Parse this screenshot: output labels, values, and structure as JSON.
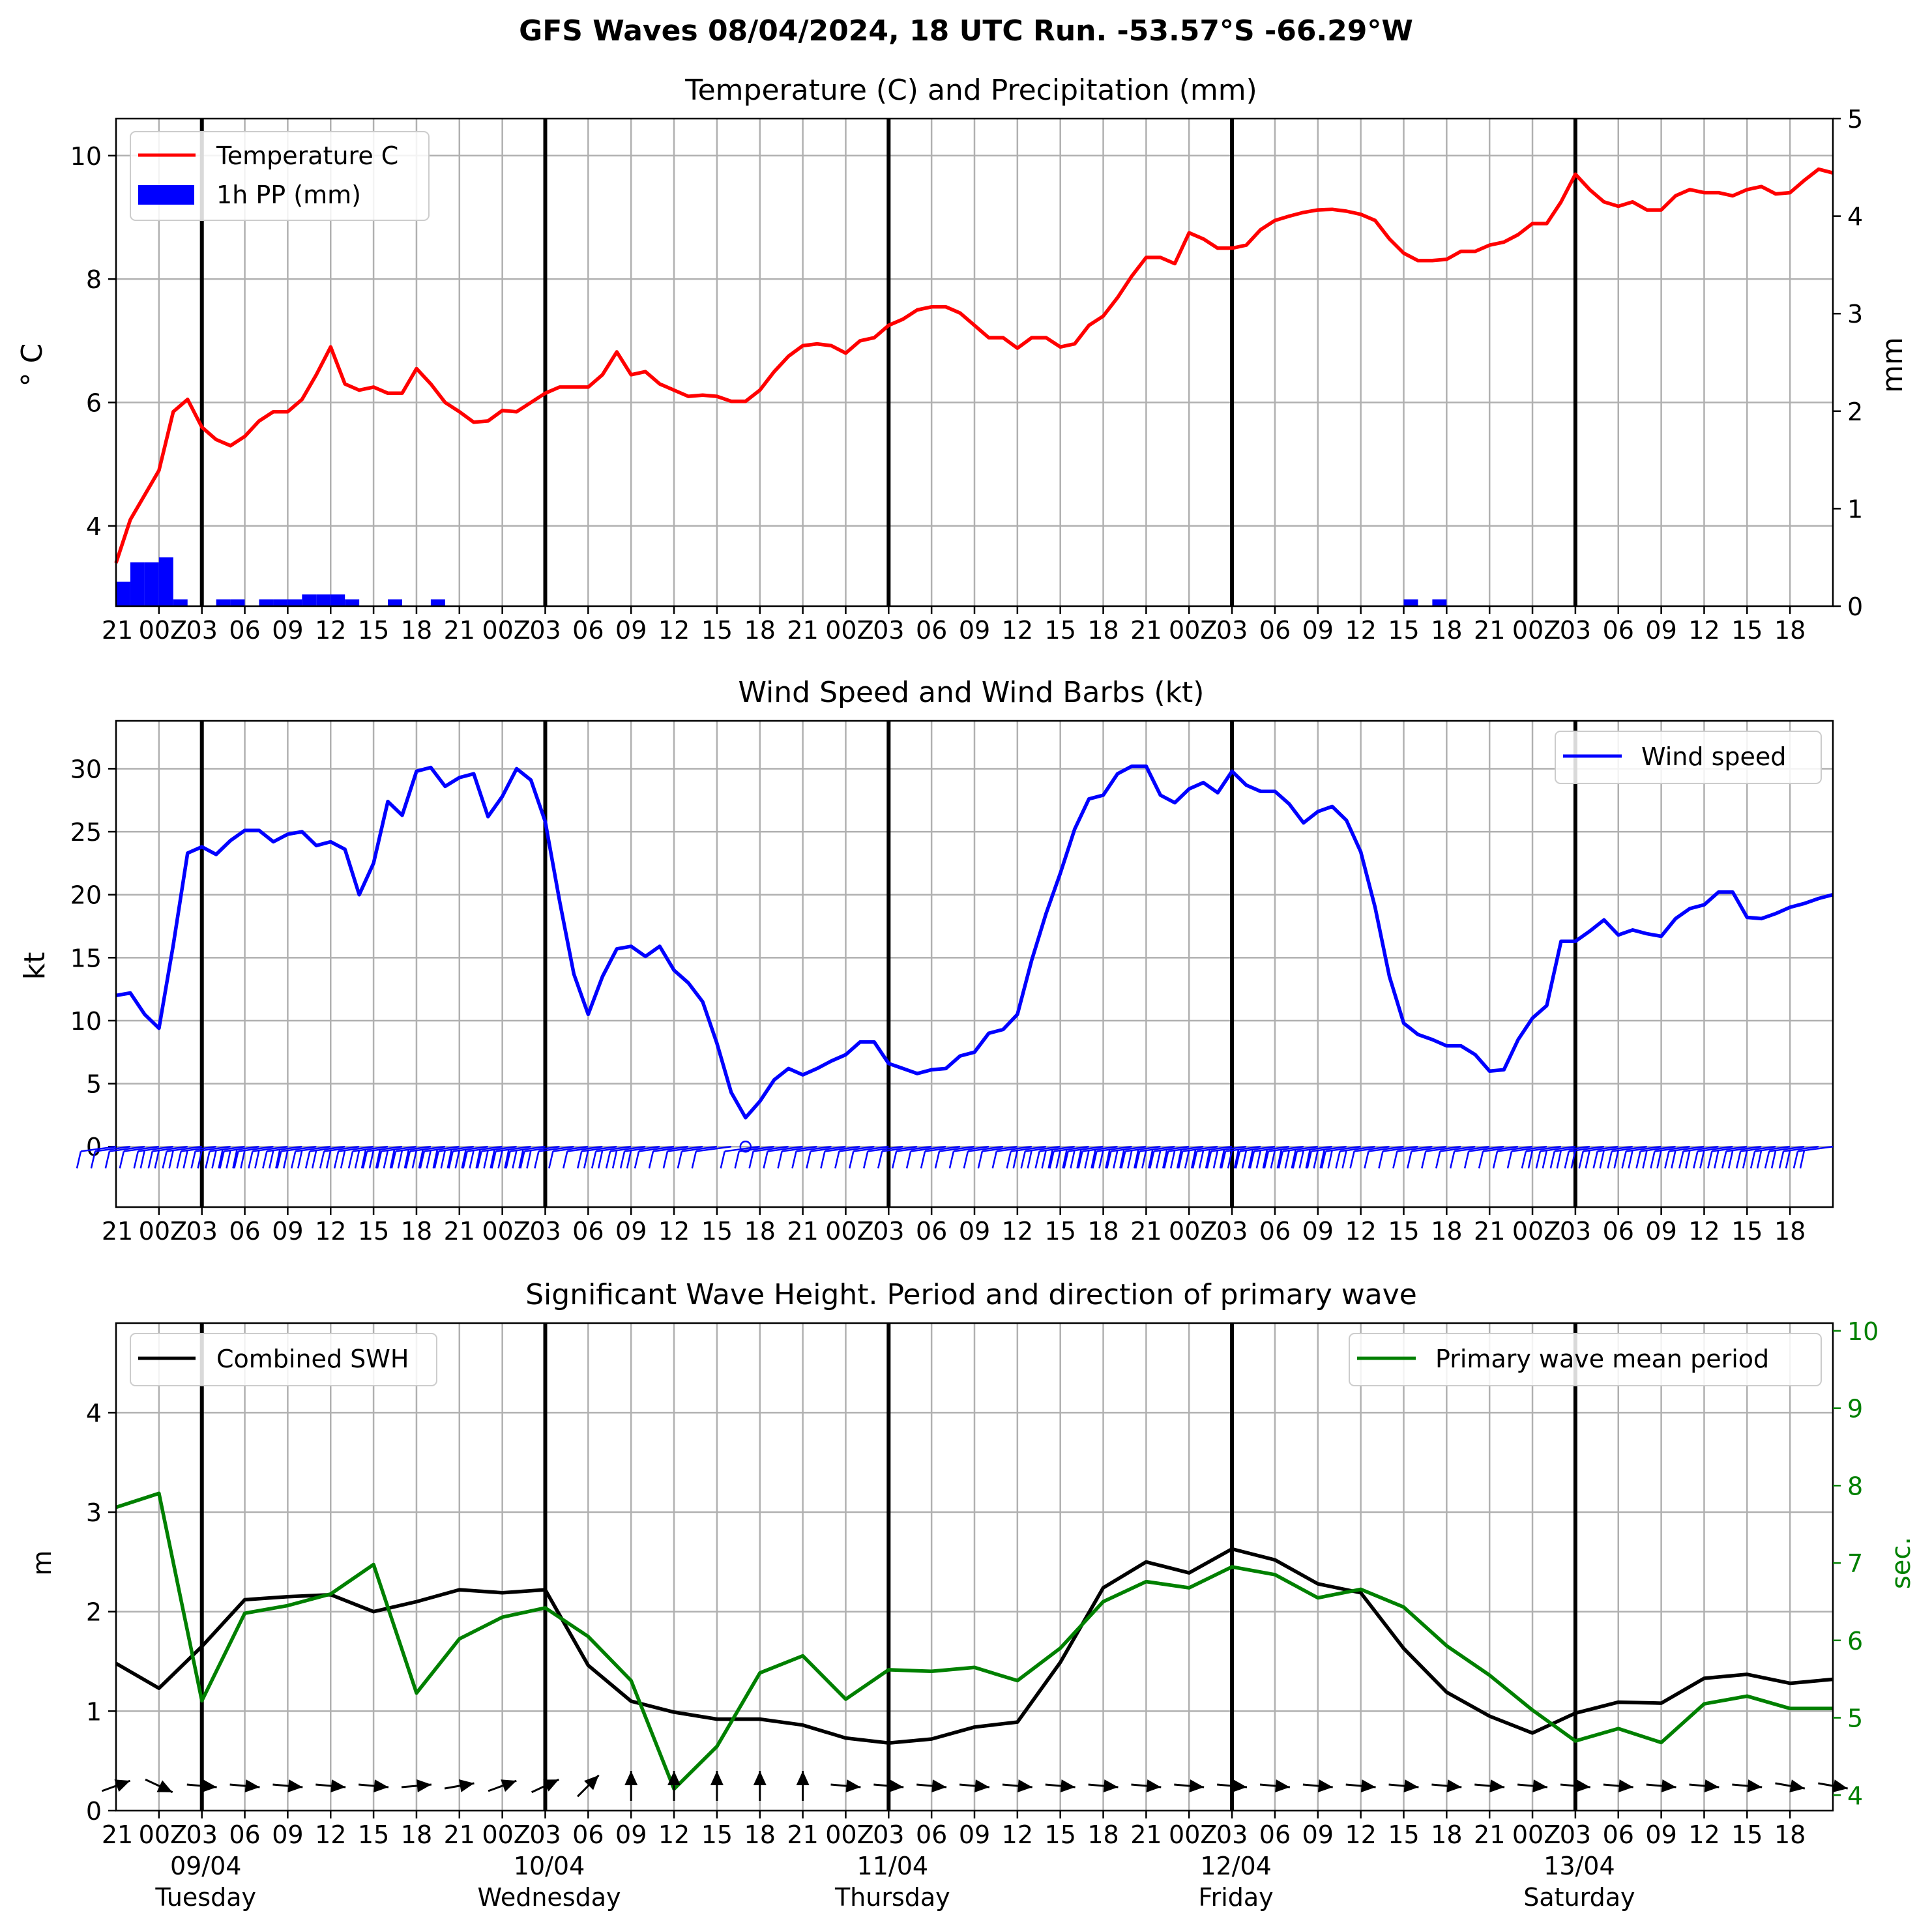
{
  "figure": {
    "suptitle": "GFS Waves 08/04/2024, 18 UTC Run. -53.57°S -66.29°W"
  },
  "time_axis": {
    "minor_tick_labels": [
      "21",
      "00Z",
      "03",
      "06",
      "09",
      "12",
      "15",
      "18",
      "21",
      "00Z",
      "03",
      "06",
      "09",
      "12",
      "15",
      "18",
      "21",
      "00Z",
      "03",
      "06",
      "09",
      "12",
      "15",
      "18",
      "21",
      "00Z",
      "03",
      "06",
      "09",
      "12",
      "15",
      "18",
      "21",
      "00Z",
      "03",
      "06",
      "09",
      "12",
      "15",
      "18"
    ],
    "day_labels": [
      {
        "date": "09/04",
        "weekday": "Tuesday"
      },
      {
        "date": "10/04",
        "weekday": "Wednesday"
      },
      {
        "date": "11/04",
        "weekday": "Thursday"
      },
      {
        "date": "12/04",
        "weekday": "Friday"
      },
      {
        "date": "13/04",
        "weekday": "Saturday"
      }
    ]
  },
  "colors": {
    "temperature": "#ff0000",
    "precipitation": "#0000ff",
    "wind": "#0000ff",
    "swh": "#000000",
    "period": "#008000",
    "grid": "#b0b0b0"
  },
  "chart_data": [
    {
      "type": "line",
      "panel": "temperature_precipitation",
      "title": "Temperature (C) and Precipitation (mm)",
      "ylabel": "° C",
      "ylabel_right": "mm",
      "ylim": [
        2.7,
        10.6
      ],
      "yticks": [
        "4",
        "6",
        "8",
        "10"
      ],
      "ylim_right": [
        0,
        5
      ],
      "yticks_right": [
        "0",
        "1",
        "2",
        "3",
        "4",
        "5"
      ],
      "grid": true,
      "legend_position": "upper-left",
      "series": [
        {
          "name": "Temperature C",
          "kind": "line",
          "axis": "left",
          "x": [
            0,
            1,
            2,
            3,
            4,
            5,
            6,
            7,
            8,
            9,
            10,
            11,
            12,
            13,
            14,
            15,
            16,
            17,
            18,
            19,
            20,
            21,
            22,
            23,
            24,
            25,
            26,
            27,
            28,
            29,
            30,
            31,
            32,
            33,
            34,
            35,
            36,
            37,
            38,
            39,
            40,
            41,
            42,
            43,
            44,
            45,
            46,
            47,
            48,
            49,
            50,
            51,
            52,
            53,
            54,
            55,
            56,
            57,
            58,
            59,
            60,
            61,
            62,
            63,
            64,
            65,
            66,
            67,
            68,
            69,
            70,
            71,
            72,
            73,
            74,
            75,
            76,
            77,
            78,
            79,
            80,
            81,
            82,
            83,
            84,
            85,
            86,
            87,
            88,
            89,
            90,
            91,
            92,
            93,
            94,
            95,
            96,
            97,
            98,
            99,
            100,
            101,
            102,
            103,
            104,
            105,
            106,
            107,
            108,
            109,
            110,
            111,
            112,
            113,
            114,
            115,
            116,
            117,
            118,
            119,
            120
          ],
          "values": [
            3.4,
            4.1,
            4.5,
            4.9,
            5.85,
            6.05,
            5.6,
            5.4,
            5.3,
            5.45,
            5.7,
            5.85,
            5.85,
            6.05,
            6.45,
            6.9,
            6.3,
            6.2,
            6.25,
            6.15,
            6.15,
            6.55,
            6.3,
            6.0,
            5.85,
            5.68,
            5.7,
            5.87,
            5.85,
            6.0,
            6.15,
            6.25,
            6.25,
            6.25,
            6.45,
            6.82,
            6.45,
            6.5,
            6.3,
            6.2,
            6.1,
            6.12,
            6.1,
            6.02,
            6.02,
            6.2,
            6.5,
            6.75,
            6.92,
            6.95,
            6.92,
            6.8,
            7.0,
            7.05,
            7.25,
            7.35,
            7.5,
            7.55,
            7.55,
            7.45,
            7.25,
            7.05,
            7.05,
            6.88,
            7.05,
            7.05,
            6.9,
            6.95,
            7.25,
            7.4,
            7.7,
            8.05,
            8.35,
            8.35,
            8.25,
            8.75,
            8.65,
            8.5,
            8.5,
            8.55,
            8.8,
            8.95,
            9.02,
            9.08,
            9.12,
            9.13,
            9.1,
            9.05,
            8.95,
            8.65,
            8.42,
            8.3,
            8.3,
            8.32,
            8.45,
            8.45,
            8.55,
            8.6,
            8.72,
            8.9,
            8.9,
            9.25,
            9.7,
            9.45,
            9.25,
            9.18,
            9.25,
            9.12,
            9.12,
            9.35,
            9.45,
            9.4,
            9.4,
            9.35,
            9.45,
            9.5,
            9.38,
            9.4,
            9.6,
            9.78,
            9.72
          ]
        },
        {
          "name": "1h PP (mm)",
          "kind": "bar",
          "axis": "right",
          "bar_width": 1,
          "x": [
            0,
            1,
            2,
            3,
            4,
            7,
            8,
            10,
            11,
            12,
            13,
            14,
            15,
            16,
            19,
            22,
            90,
            92
          ],
          "values": [
            0.25,
            0.45,
            0.45,
            0.5,
            0.07,
            0.07,
            0.07,
            0.07,
            0.07,
            0.07,
            0.12,
            0.12,
            0.12,
            0.07,
            0.07,
            0.07,
            0.07,
            0.07
          ]
        }
      ]
    },
    {
      "type": "line",
      "panel": "wind",
      "title": "Wind Speed and Wind Barbs (kt)",
      "ylabel": "kt",
      "ylim": [
        -4.8,
        33.8
      ],
      "yticks": [
        "0",
        "5",
        "10",
        "15",
        "20",
        "25",
        "30"
      ],
      "grid": true,
      "legend_position": "upper-right",
      "series": [
        {
          "name": "Wind speed",
          "kind": "line",
          "x": [
            0,
            1,
            2,
            3,
            4,
            5,
            6,
            7,
            8,
            9,
            10,
            11,
            12,
            13,
            14,
            15,
            16,
            17,
            18,
            19,
            20,
            21,
            22,
            23,
            24,
            25,
            26,
            27,
            28,
            29,
            30,
            31,
            32,
            33,
            34,
            35,
            36,
            37,
            38,
            39,
            40,
            41,
            42,
            43,
            44,
            45,
            46,
            47,
            48,
            49,
            50,
            51,
            52,
            53,
            54,
            55,
            56,
            57,
            58,
            59,
            60,
            61,
            62,
            63,
            64,
            65,
            66,
            67,
            68,
            69,
            70,
            71,
            72,
            73,
            74,
            75,
            76,
            77,
            78,
            79,
            80,
            81,
            82,
            83,
            84,
            85,
            86,
            87,
            88,
            89,
            90,
            91,
            92,
            93,
            94,
            95,
            96,
            97,
            98,
            99,
            100,
            101,
            102,
            103,
            104,
            105,
            106,
            107,
            108,
            109,
            110,
            111,
            112,
            113,
            114,
            115,
            116,
            117,
            118,
            119,
            120
          ],
          "values": [
            12,
            12.2,
            10.5,
            9.4,
            16,
            23.3,
            23.8,
            23.2,
            24.3,
            25.1,
            25.1,
            24.2,
            24.8,
            25,
            23.9,
            24.2,
            23.6,
            20,
            22.5,
            27.4,
            26.3,
            29.8,
            30.1,
            28.6,
            29.3,
            29.6,
            26.2,
            27.8,
            30,
            29.1,
            25.8,
            19.5,
            13.7,
            10.5,
            13.5,
            15.7,
            15.9,
            15.1,
            15.9,
            14,
            13,
            11.5,
            8.2,
            4.3,
            2.3,
            3.6,
            5.3,
            6.2,
            5.7,
            6.2,
            6.8,
            7.3,
            8.3,
            8.3,
            6.6,
            6.2,
            5.8,
            6.1,
            6.2,
            7.2,
            7.5,
            9,
            9.3,
            10.5,
            14.8,
            18.5,
            21.7,
            25.2,
            27.6,
            27.9,
            29.6,
            30.2,
            30.2,
            27.9,
            27.3,
            28.4,
            28.9,
            28.1,
            29.8,
            28.7,
            28.2,
            28.2,
            27.2,
            25.7,
            26.6,
            27,
            25.9,
            23.4,
            19,
            13.5,
            9.8,
            8.9,
            8.5,
            8,
            8,
            7.3,
            6,
            6.1,
            8.5,
            10.2,
            11.2,
            16.3,
            16.3,
            17.1,
            18,
            16.8,
            17.2,
            16.9,
            16.7,
            18.1,
            18.9,
            19.2,
            20.2,
            20.2,
            18.2,
            18.1,
            18.5,
            19,
            19.3,
            19.7,
            20
          ]
        }
      ]
    },
    {
      "type": "line",
      "panel": "waves",
      "title": "Significant Wave Height. Period and direction of primary wave",
      "ylabel": "m",
      "ylabel_right": "sec.",
      "ylim": [
        0,
        4.9
      ],
      "yticks": [
        "0",
        "1",
        "2",
        "3",
        "4"
      ],
      "ylim_right": [
        3.8,
        10.1
      ],
      "yticks_right": [
        "4",
        "5",
        "6",
        "7",
        "8",
        "9",
        "10"
      ],
      "grid": true,
      "legend_positions": [
        "upper-left",
        "upper-right"
      ],
      "series": [
        {
          "name": "Combined SWH",
          "kind": "line",
          "axis": "left",
          "x": [
            0,
            3,
            6,
            9,
            12,
            15,
            18,
            21,
            24,
            27,
            30,
            33,
            36,
            39,
            42,
            45,
            48,
            51,
            54,
            57,
            60,
            63,
            66,
            69,
            72,
            75,
            78,
            81,
            84,
            87,
            90,
            93,
            96,
            99,
            102,
            105,
            108,
            111,
            114,
            117,
            120
          ],
          "values": [
            1.48,
            1.23,
            1.65,
            2.12,
            2.15,
            2.17,
            2.0,
            2.1,
            2.22,
            2.19,
            2.22,
            1.46,
            1.1,
            0.99,
            0.92,
            0.92,
            0.86,
            0.73,
            0.68,
            0.72,
            0.84,
            0.89,
            1.49,
            2.24,
            2.5,
            2.39,
            2.63,
            2.52,
            2.28,
            2.19,
            1.63,
            1.19,
            0.95,
            0.78,
            0.98,
            1.09,
            1.08,
            1.33,
            1.37,
            1.28,
            1.32
          ]
        },
        {
          "name": "Primary wave mean period",
          "kind": "line",
          "axis": "right",
          "x": [
            0,
            3,
            6,
            9,
            12,
            15,
            18,
            21,
            24,
            27,
            30,
            33,
            36,
            39,
            42,
            45,
            48,
            51,
            54,
            57,
            60,
            63,
            66,
            69,
            72,
            75,
            78,
            81,
            84,
            87,
            90,
            93,
            96,
            99,
            102,
            105,
            108,
            111,
            114,
            117,
            120
          ],
          "values": [
            7.72,
            7.9,
            5.22,
            6.35,
            6.45,
            6.6,
            6.98,
            5.32,
            6.02,
            6.3,
            6.42,
            6.05,
            5.48,
            4.08,
            4.63,
            5.58,
            5.8,
            5.24,
            5.62,
            5.6,
            5.65,
            5.48,
            5.9,
            6.5,
            6.76,
            6.68,
            6.95,
            6.85,
            6.55,
            6.66,
            6.43,
            5.93,
            5.55,
            5.1,
            4.7,
            4.86,
            4.68,
            5.18,
            5.28,
            5.12,
            5.12
          ]
        }
      ],
      "direction_arrows": {
        "x": [
          0,
          3,
          6,
          9,
          12,
          15,
          18,
          21,
          24,
          27,
          30,
          33,
          36,
          39,
          42,
          45,
          48,
          51,
          54,
          57,
          60,
          63,
          66,
          69,
          72,
          75,
          78,
          81,
          84,
          87,
          90,
          93,
          96,
          99,
          102,
          105,
          108,
          111,
          114,
          117,
          120
        ],
        "angle_deg": [
          20,
          -25,
          -5,
          -5,
          -5,
          -5,
          -5,
          5,
          10,
          20,
          25,
          45,
          90,
          90,
          90,
          90,
          90,
          -5,
          -5,
          -5,
          -5,
          -5,
          -5,
          -5,
          -5,
          -5,
          -5,
          -5,
          -5,
          -5,
          -5,
          -5,
          -5,
          -5,
          -5,
          -5,
          -5,
          -5,
          -5,
          -10,
          -10
        ]
      }
    }
  ]
}
